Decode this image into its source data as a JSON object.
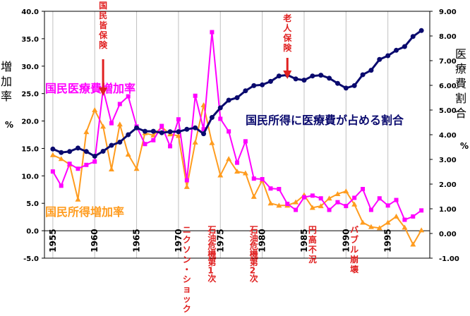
{
  "chart_data": {
    "type": "line",
    "y_left": {
      "label": "増加率",
      "unit": "%",
      "ylim": [
        -5.0,
        40.0
      ],
      "ticks": [
        "40.0",
        "35.0",
        "30.0",
        "25.0",
        "20.0",
        "15.0",
        "10.0",
        "5.0",
        "0.0",
        "-5.0"
      ]
    },
    "y_right": {
      "label": "医療費割合",
      "unit": "%",
      "ylim": [
        -1.0,
        9.0
      ],
      "ticks": [
        "9.00",
        "8.00",
        "7.00",
        "6.00",
        "5.00",
        "4.00",
        "3.00",
        "2.00",
        "1.00",
        "0.00",
        "-1.00"
      ]
    },
    "x_ticks": [
      "1955",
      "1960",
      "1965",
      "1970",
      "1975",
      "1980",
      "1985",
      "1990",
      "1995"
    ],
    "xlim": [
      1954,
      2000
    ],
    "grid": true,
    "series": [
      {
        "name": "国民医療費増加率",
        "axis": "left",
        "color": "#ff00ff",
        "marker": "square",
        "x": [
          1955,
          1956,
          1957,
          1958,
          1959,
          1960,
          1961,
          1962,
          1963,
          1964,
          1965,
          1966,
          1967,
          1968,
          1969,
          1970,
          1971,
          1972,
          1973,
          1974,
          1975,
          1976,
          1977,
          1978,
          1979,
          1980,
          1981,
          1982,
          1983,
          1984,
          1985,
          1986,
          1987,
          1988,
          1989,
          1990,
          1991,
          1992,
          1993,
          1994,
          1995,
          1996,
          1997,
          1998,
          1999
        ],
        "y": [
          10.8,
          8.2,
          12.2,
          11.3,
          12.0,
          12.6,
          25.8,
          19.6,
          23.1,
          24.5,
          19.0,
          15.8,
          16.5,
          19.1,
          15.4,
          20.3,
          9.2,
          24.6,
          18.5,
          36.2,
          20.4,
          18.1,
          12.4,
          16.3,
          9.5,
          9.4,
          7.7,
          7.6,
          4.9,
          3.8,
          6.1,
          6.4,
          5.9,
          3.8,
          5.2,
          4.5,
          6.0,
          7.6,
          3.8,
          5.9,
          4.6,
          5.6,
          2.0,
          2.6,
          3.7
        ]
      },
      {
        "name": "国民所得増加率",
        "axis": "left",
        "color": "#ff9c1f",
        "marker": "triangle",
        "x": [
          1955,
          1956,
          1957,
          1958,
          1959,
          1960,
          1961,
          1962,
          1963,
          1964,
          1965,
          1966,
          1967,
          1968,
          1969,
          1970,
          1971,
          1972,
          1973,
          1974,
          1975,
          1976,
          1977,
          1978,
          1979,
          1980,
          1981,
          1982,
          1983,
          1984,
          1985,
          1986,
          1987,
          1988,
          1989,
          1990,
          1991,
          1992,
          1993,
          1994,
          1995,
          1996,
          1997,
          1998,
          1999
        ],
        "y": [
          13.8,
          13.1,
          12.1,
          5.7,
          18.0,
          22.0,
          19.0,
          11.2,
          19.4,
          13.9,
          11.3,
          17.8,
          17.4,
          18.9,
          17.6,
          17.3,
          8.0,
          16.1,
          22.9,
          16.0,
          10.1,
          13.1,
          10.8,
          10.5,
          6.2,
          9.2,
          5.0,
          4.6,
          4.6,
          5.2,
          6.5,
          4.2,
          4.5,
          5.9,
          6.7,
          7.2,
          4.8,
          1.5,
          0.7,
          0.5,
          1.5,
          2.6,
          0.6,
          -2.5,
          0.1
        ]
      },
      {
        "name": "国民所得に医療費が占める割合",
        "axis": "right",
        "color": "#0a0a6e",
        "marker": "circle",
        "x": [
          1955,
          1956,
          1957,
          1958,
          1959,
          1960,
          1961,
          1962,
          1963,
          1964,
          1965,
          1966,
          1967,
          1968,
          1969,
          1970,
          1971,
          1972,
          1973,
          1974,
          1975,
          1976,
          1977,
          1978,
          1979,
          1980,
          1981,
          1982,
          1983,
          1984,
          1985,
          1986,
          1987,
          1988,
          1989,
          1990,
          1991,
          1992,
          1993,
          1994,
          1995,
          1996,
          1997,
          1998,
          1999
        ],
        "y": [
          3.42,
          3.28,
          3.32,
          3.46,
          3.32,
          3.13,
          3.33,
          3.57,
          3.7,
          4.0,
          4.28,
          4.14,
          4.14,
          4.08,
          4.12,
          4.12,
          4.22,
          4.28,
          4.04,
          4.7,
          5.09,
          5.4,
          5.5,
          5.78,
          5.99,
          6.02,
          6.16,
          6.38,
          6.42,
          6.26,
          6.21,
          6.38,
          6.41,
          6.29,
          6.08,
          5.89,
          5.99,
          6.43,
          6.61,
          7.05,
          7.2,
          7.42,
          7.57,
          7.98,
          8.22
        ]
      }
    ],
    "series_labels": [
      {
        "text": "国民医療費増加率",
        "color": "#ff00ff"
      },
      {
        "text": "国民所得に医療費が占める割合",
        "color": "#0a0a6e"
      },
      {
        "text": "国民所得増加率",
        "color": "#ff9c1f"
      }
    ],
    "annotations": [
      {
        "id": "kaihoken",
        "text": "国民皆保険",
        "year": 1961
      },
      {
        "id": "rojin",
        "text": "老人保険",
        "year": 1983
      },
      {
        "id": "nixon",
        "text": "ニクソン・ショック",
        "year": 1971
      },
      {
        "id": "oil1",
        "text": "石油危機第1次",
        "year": 1974
      },
      {
        "id": "oil2",
        "text": "石油危機第2次",
        "year": 1979
      },
      {
        "id": "endaka",
        "text": "円高不況",
        "year": 1986
      },
      {
        "id": "bubble",
        "text": "バブル崩壊",
        "year": 1991
      }
    ]
  }
}
